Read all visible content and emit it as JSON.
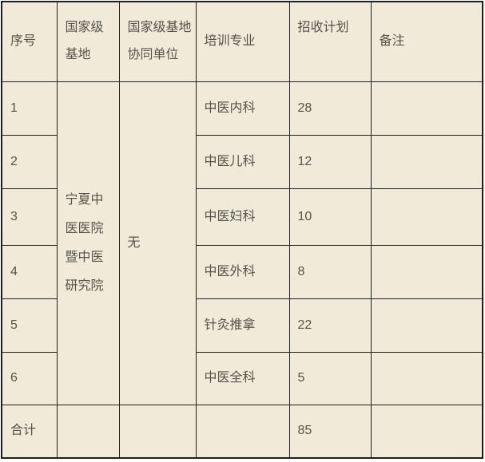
{
  "colors": {
    "table_background": "#f1ead9",
    "border": "#1f1f1f",
    "text": "#56534d",
    "page_background": "#ffffff"
  },
  "table": {
    "headers": [
      "序号",
      "国家级基地",
      "国家级基地协同单位",
      "培训专业",
      "招收计划",
      "备注"
    ],
    "base": "宁夏中医医院暨中医研究院",
    "collaborator": "无",
    "rows": [
      {
        "no": "1",
        "specialty": "中医内科",
        "plan": "28",
        "remark": ""
      },
      {
        "no": "2",
        "specialty": "中医儿科",
        "plan": "12",
        "remark": ""
      },
      {
        "no": "3",
        "specialty": "中医妇科",
        "plan": "10",
        "remark": ""
      },
      {
        "no": "4",
        "specialty": "中医外科",
        "plan": "8",
        "remark": ""
      },
      {
        "no": "5",
        "specialty": "针灸推拿",
        "plan": "22",
        "remark": ""
      },
      {
        "no": "6",
        "specialty": "中医全科",
        "plan": "5",
        "remark": ""
      }
    ],
    "total": {
      "label": "合计",
      "base": "",
      "collaborator": "",
      "specialty": "",
      "plan": "85",
      "remark": ""
    }
  }
}
